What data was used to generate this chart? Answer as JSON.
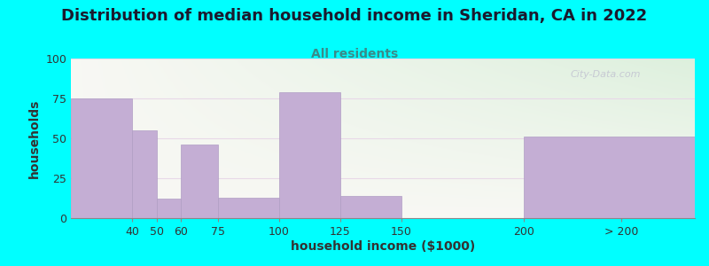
{
  "title": "Distribution of median household income in Sheridan, CA in 2022",
  "subtitle": "All residents",
  "xlabel": "household income ($1000)",
  "ylabel": "households",
  "background_color": "#00FFFF",
  "bar_color": "#c4aed4",
  "bar_edge_color": "#b09ec4",
  "watermark": "City-Data.com",
  "yticks": [
    0,
    25,
    50,
    75,
    100
  ],
  "ylim": [
    0,
    100
  ],
  "bins_left": [
    15,
    40,
    50,
    60,
    75,
    100,
    125,
    150,
    200
  ],
  "bins_right": [
    40,
    50,
    60,
    75,
    100,
    125,
    150,
    200,
    270
  ],
  "bar_heights": [
    75,
    55,
    12,
    46,
    13,
    79,
    14,
    0,
    51
  ],
  "xtick_positions": [
    40,
    50,
    60,
    75,
    100,
    125,
    150,
    200,
    240
  ],
  "xtick_labels": [
    "40",
    "50",
    "60",
    "75",
    "100",
    "125",
    "150",
    "200",
    "> 200"
  ],
  "xlim_left": 15,
  "xlim_right": 270,
  "title_fontsize": 13,
  "subtitle_fontsize": 10,
  "axis_label_fontsize": 10,
  "tick_fontsize": 9,
  "grad_color_left": "#ddf0dd",
  "grad_color_right": "#f8f8f4"
}
